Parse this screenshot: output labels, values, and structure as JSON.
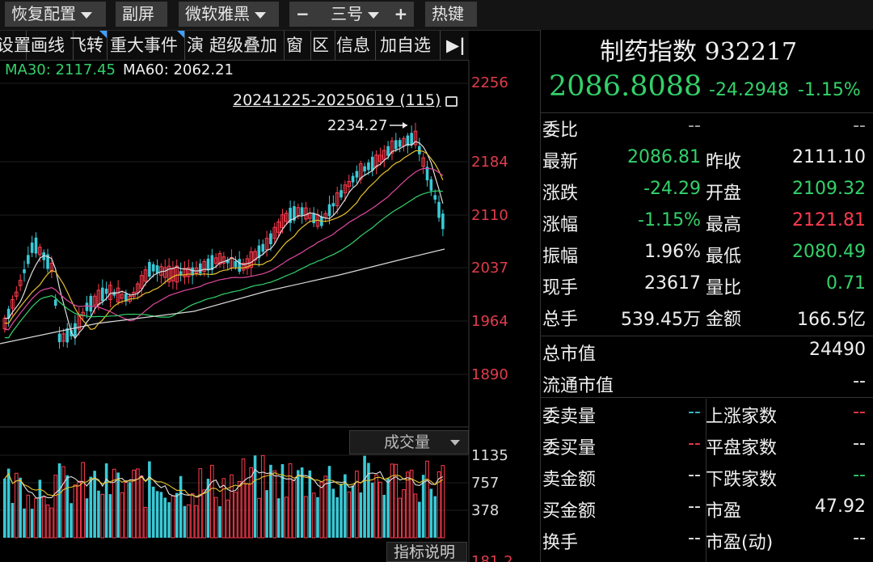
{
  "toolbar": {
    "restore_config": "恢复配置",
    "sub_screen": "副屏",
    "font": "微软雅黑",
    "font_minus": "−",
    "font_size": "三号",
    "font_plus": "+",
    "hotkey": "热键"
  },
  "tabs": [
    "设置",
    "画线",
    "飞转",
    "重大事件",
    "演",
    "超级叠加",
    "窗",
    "区",
    "信息",
    "加自选",
    "▶|"
  ],
  "ma": {
    "ma30": "MA30: 2117.45",
    "ma60": "MA60: 2062.21"
  },
  "chart": {
    "range_label": "20241225-20250619 (115)",
    "peak_label": "2234.27",
    "price_axis": [
      "2256",
      "2184",
      "2110",
      "2037",
      "1964",
      "1890"
    ],
    "volume_axis": [
      "1135",
      "757",
      "378"
    ],
    "volume_button": "成交量",
    "indicator_button": "指标说明",
    "bottom_cut": "181.2"
  },
  "quote": {
    "title": "制药指数 932217",
    "price": "2086.8088",
    "change": "-24.2948",
    "change_pct": "-1.15%",
    "rows": [
      {
        "l1": "委比",
        "v1": "--",
        "l2": "",
        "v2": "--"
      },
      {
        "l1": "最新",
        "v1": "2086.81",
        "l2": "昨收",
        "v2": "2111.10"
      },
      {
        "l1": "涨跌",
        "v1": "-24.29",
        "l2": "开盘",
        "v2": "2109.32"
      },
      {
        "l1": "涨幅",
        "v1": "-1.15%",
        "l2": "最高",
        "v2": "2121.81"
      },
      {
        "l1": "振幅",
        "v1": "1.96%",
        "l2": "最低",
        "v2": "2080.49"
      },
      {
        "l1": "现手",
        "v1": "23617",
        "l2": "量比",
        "v2": "0.71"
      },
      {
        "l1": "总手",
        "v1": "539.45万",
        "l2": "金额",
        "v2": "166.5亿"
      }
    ],
    "total_mv_label": "总市值",
    "total_mv": "24490",
    "float_mv_label": "流通市值",
    "float_mv": "--",
    "rows2": [
      {
        "l1": "委卖量",
        "v1": "--",
        "l2": "上涨家数",
        "v2": "--"
      },
      {
        "l1": "委买量",
        "v1": "--",
        "l2": "平盘家数",
        "v2": "--"
      },
      {
        "l1": "卖金额",
        "v1": "--",
        "l2": "下跌家数",
        "v2": "--"
      },
      {
        "l1": "买金额",
        "v1": "--",
        "l2": "市盈",
        "v2": "47.92"
      },
      {
        "l1": "换手",
        "v1": "--",
        "l2": "市盈(动)",
        "v2": "--"
      }
    ]
  },
  "colors": {
    "up": "#ff3b4e",
    "down": "#39c9d6",
    "ma5": "#e0e0e0",
    "ma10": "#e6c12c",
    "ma20": "#e04aa0",
    "ma30": "#33d16a",
    "ma60": "#d8d8d8"
  }
}
